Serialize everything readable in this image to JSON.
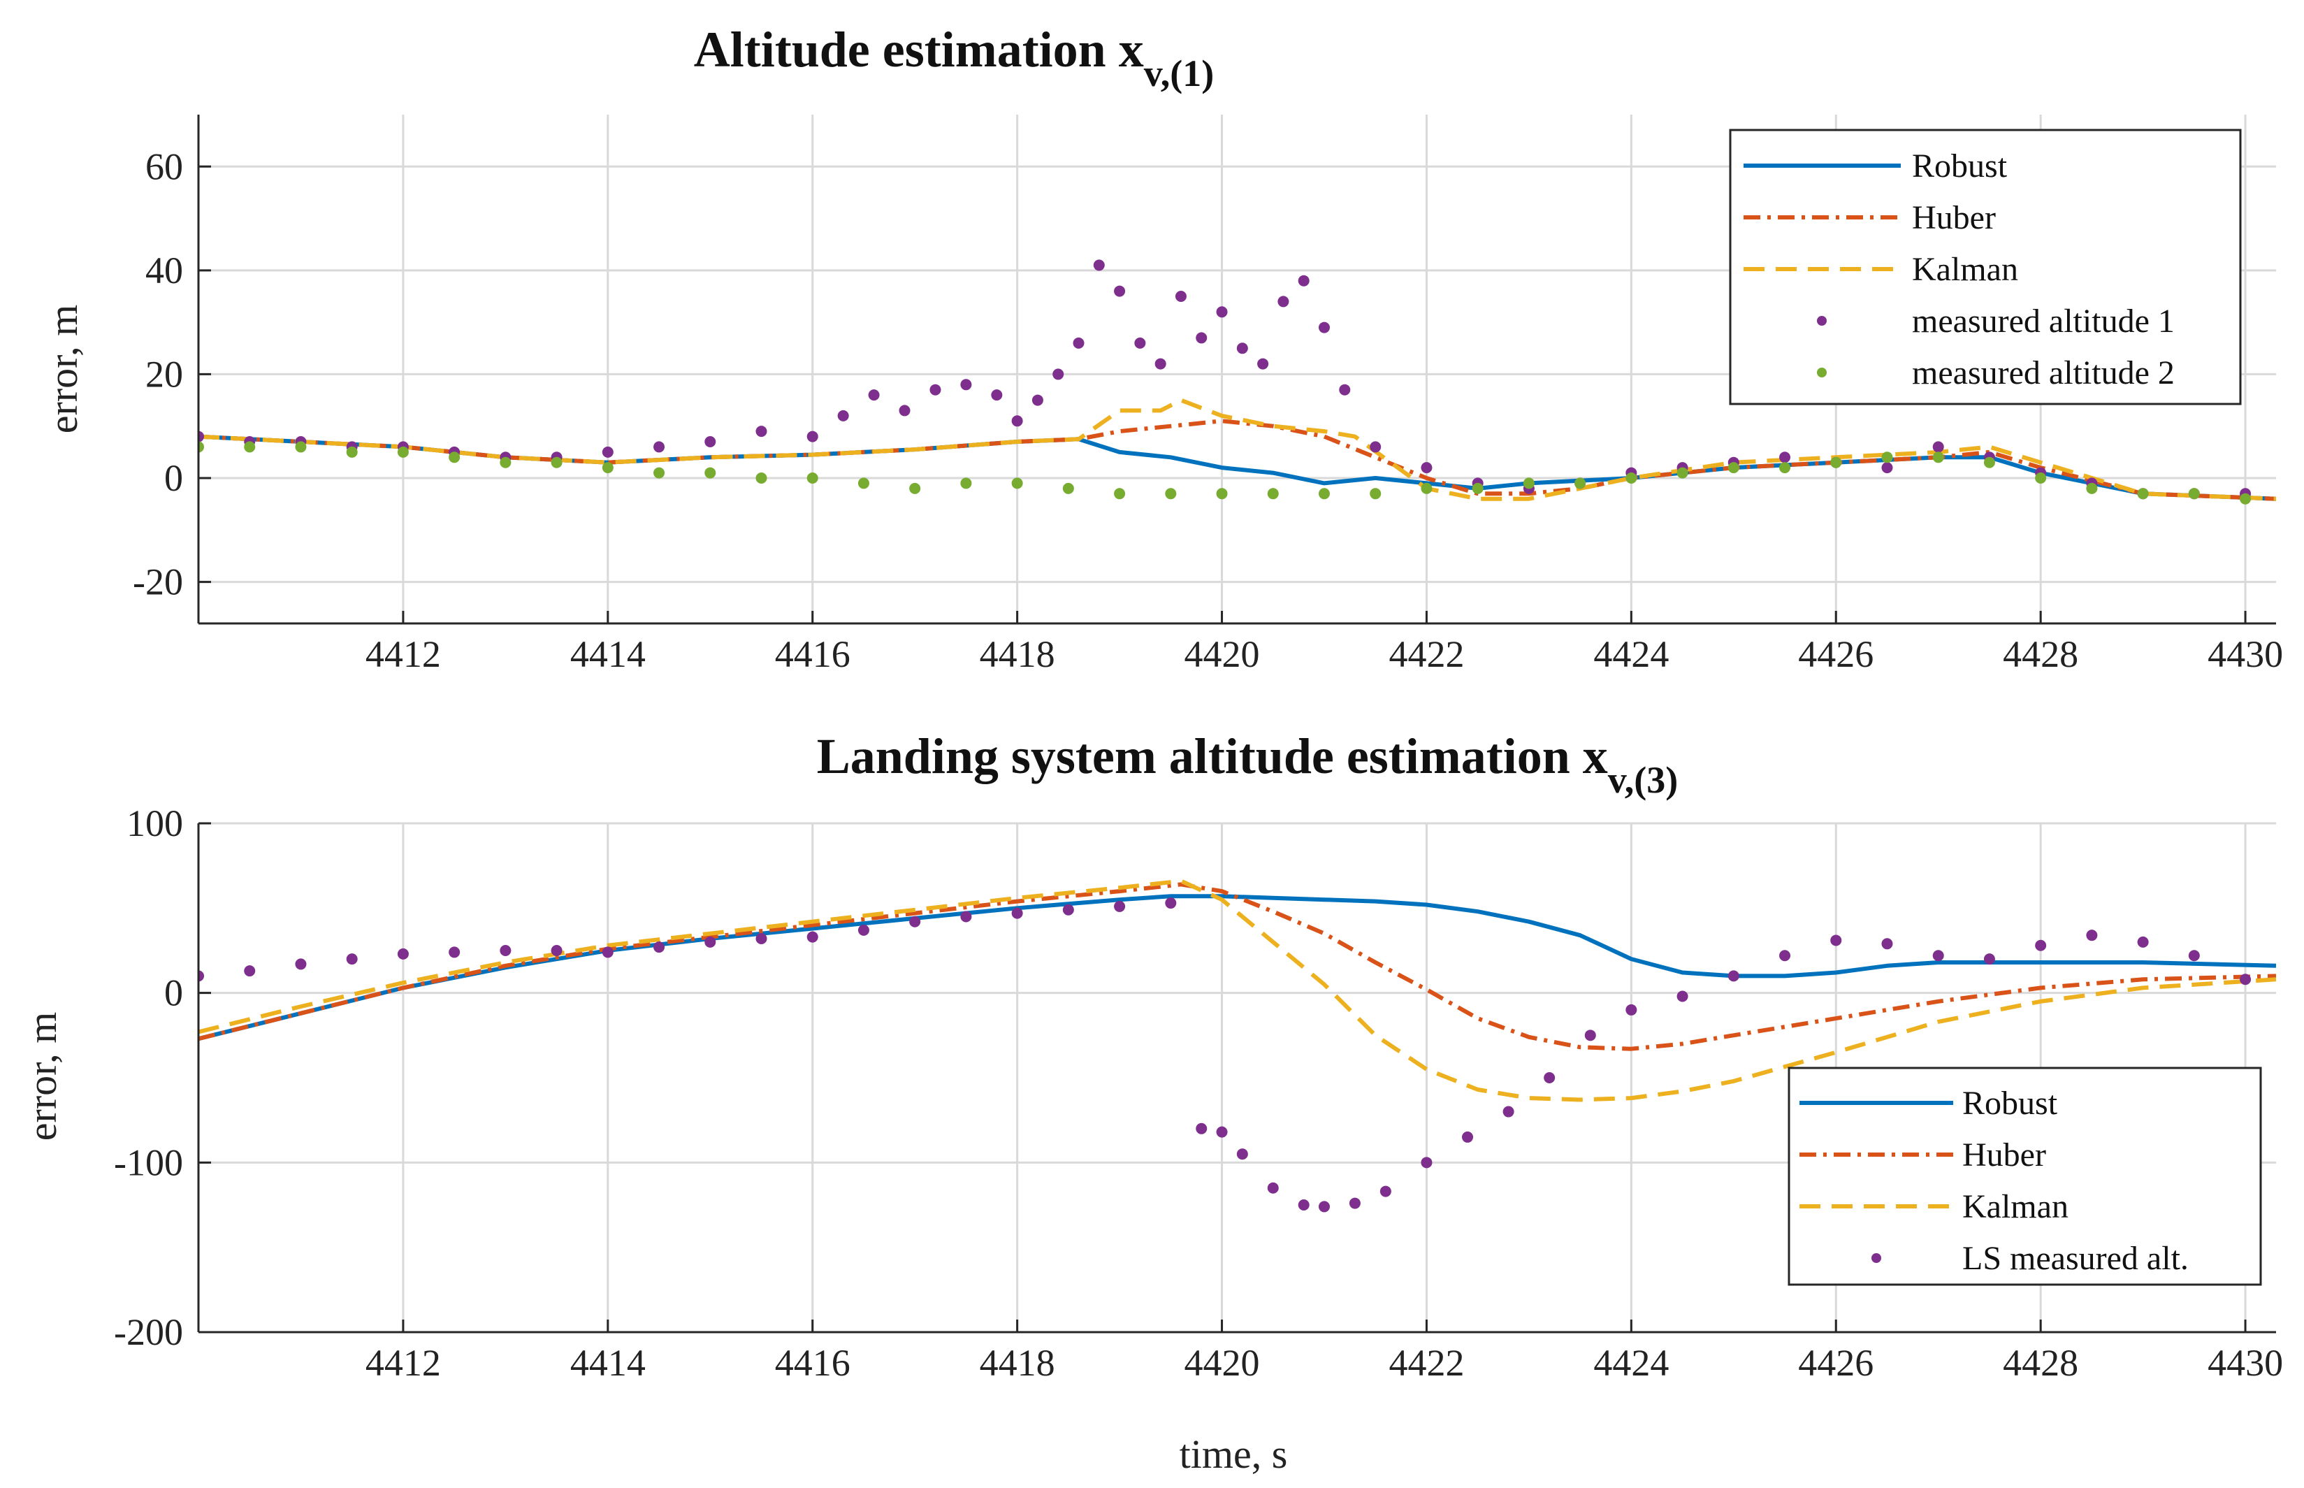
{
  "figure": {
    "panels": [
      "top",
      "bottom"
    ]
  },
  "colors": {
    "robust": "#0072BD",
    "huber": "#D95319",
    "kalman": "#EDB120",
    "meas1": "#7E2F8E",
    "meas2": "#77AC30"
  },
  "chart_data": [
    {
      "id": "top",
      "type": "line",
      "title_main": "Altitude estimation x",
      "title_sub": "v,(1)",
      "xlabel": "",
      "ylabel": "error, m",
      "xlim": [
        4410,
        4430.3
      ],
      "ylim": [
        -28,
        70
      ],
      "xticks": [
        4412,
        4414,
        4416,
        4418,
        4420,
        4422,
        4424,
        4426,
        4428,
        4430
      ],
      "xtick_labels": [
        "4412",
        "4414",
        "4416",
        "4418",
        "4420",
        "4422",
        "4424",
        "4426",
        "4428",
        "4430"
      ],
      "yticks": [
        -20,
        0,
        20,
        40,
        60
      ],
      "ytick_labels": [
        "-20",
        "0",
        "20",
        "40",
        "60"
      ],
      "grid": true,
      "legend": "top-right",
      "series": [
        {
          "name": "Robust",
          "style": "solid",
          "color": "#0072BD",
          "x": [
            4410,
            4411,
            4412,
            4413,
            4414,
            4415,
            4416,
            4417,
            4418,
            4418.6,
            4419,
            4419.5,
            4420,
            4420.5,
            4421,
            4421.5,
            4422,
            4422.5,
            4423,
            4424,
            4425,
            4426,
            4427,
            4427.5,
            4428,
            4429,
            4430.3
          ],
          "y": [
            8,
            7,
            6,
            4,
            3,
            4,
            4.5,
            5.5,
            7,
            7.5,
            5,
            4,
            2,
            1,
            -1,
            0,
            -1,
            -2,
            -1,
            0,
            2,
            3,
            4,
            4,
            1,
            -3,
            -4
          ]
        },
        {
          "name": "Huber",
          "style": "dashdot",
          "color": "#D95319",
          "x": [
            4410,
            4411,
            4412,
            4413,
            4414,
            4415,
            4416,
            4417,
            4418,
            4418.6,
            4419,
            4419.5,
            4420,
            4420.5,
            4421,
            4421.5,
            4422,
            4422.5,
            4423,
            4423.5,
            4424,
            4425,
            4426,
            4427,
            4427.5,
            4428,
            4429,
            4430.3
          ],
          "y": [
            8,
            7,
            6,
            4,
            3,
            4,
            4.5,
            5.5,
            7,
            7.5,
            9,
            10,
            11,
            10,
            8,
            4,
            0,
            -3,
            -3,
            -2,
            0,
            2,
            3,
            4,
            5,
            2,
            -3,
            -4
          ]
        },
        {
          "name": "Kalman",
          "style": "dashed",
          "color": "#EDB120",
          "x": [
            4410,
            4411,
            4412,
            4413,
            4414,
            4415,
            4416,
            4417,
            4418,
            4418.6,
            4419,
            4419.4,
            4419.6,
            4420,
            4420.5,
            4421,
            4421.3,
            4422,
            4422.5,
            4423,
            4423.5,
            4424,
            4425,
            4426,
            4427,
            4427.5,
            4428,
            4429,
            4430.3
          ],
          "y": [
            8,
            7,
            6,
            4,
            3,
            4,
            4.5,
            5.5,
            7,
            7.5,
            13,
            13,
            15,
            12,
            10,
            9,
            8,
            -2,
            -4,
            -4,
            -2,
            0,
            3,
            4,
            5,
            6,
            3,
            -3,
            -4
          ]
        },
        {
          "name": "measured altitude 1",
          "style": "dots",
          "color": "#7E2F8E",
          "x": [
            4410.0,
            4410.5,
            4411.0,
            4411.5,
            4412.0,
            4412.5,
            4413.0,
            4413.5,
            4414.0,
            4414.5,
            4415.0,
            4415.5,
            4416.0,
            4416.3,
            4416.6,
            4416.9,
            4417.2,
            4417.5,
            4417.8,
            4418.0,
            4418.2,
            4418.4,
            4418.6,
            4418.8,
            4419.0,
            4419.2,
            4419.4,
            4419.6,
            4419.8,
            4420.0,
            4420.2,
            4420.4,
            4420.6,
            4420.8,
            4421.0,
            4421.2,
            4421.5,
            4422.0,
            4422.5,
            4423.0,
            4423.5,
            4424.0,
            4424.5,
            4425.0,
            4425.5,
            4426.0,
            4426.5,
            4427.0,
            4427.5,
            4428.0,
            4428.5,
            4429.0,
            4429.5,
            4430.0
          ],
          "y": [
            8,
            7,
            7,
            6,
            6,
            5,
            4,
            4,
            5,
            6,
            7,
            9,
            8,
            12,
            16,
            13,
            17,
            18,
            16,
            11,
            15,
            20,
            26,
            41,
            36,
            26,
            22,
            35,
            27,
            32,
            25,
            22,
            34,
            38,
            29,
            17,
            6,
            2,
            -1,
            -2,
            -1,
            1,
            2,
            3,
            4,
            3,
            2,
            6,
            4,
            1,
            -1,
            -3,
            -3,
            -3
          ]
        },
        {
          "name": "measured altitude 2",
          "style": "dots",
          "color": "#77AC30",
          "x": [
            4410.0,
            4410.5,
            4411.0,
            4411.5,
            4412.0,
            4412.5,
            4413.0,
            4413.5,
            4414.0,
            4414.5,
            4415.0,
            4415.5,
            4416.0,
            4416.5,
            4417.0,
            4417.5,
            4418.0,
            4418.5,
            4419.0,
            4419.5,
            4420.0,
            4420.5,
            4421.0,
            4421.5,
            4422.0,
            4422.5,
            4423.0,
            4423.5,
            4424.0,
            4424.5,
            4425.0,
            4425.5,
            4426.0,
            4426.5,
            4427.0,
            4427.5,
            4428.0,
            4428.5,
            4429.0,
            4429.5,
            4430.0
          ],
          "y": [
            6,
            6,
            6,
            5,
            5,
            4,
            3,
            3,
            2,
            1,
            1,
            0,
            0,
            -1,
            -2,
            -1,
            -1,
            -2,
            -3,
            -3,
            -3,
            -3,
            -3,
            -3,
            -2,
            -2,
            -1,
            -1,
            0,
            1,
            2,
            2,
            3,
            4,
            4,
            3,
            0,
            -2,
            -3,
            -3,
            -4
          ]
        }
      ]
    },
    {
      "id": "bottom",
      "type": "line",
      "title_main": "Landing system altitude estimation x",
      "title_sub": "v,(3)",
      "xlabel": "time, s",
      "ylabel": "error, m",
      "xlim": [
        4410,
        4430.3
      ],
      "ylim": [
        -200,
        100
      ],
      "xticks": [
        4412,
        4414,
        4416,
        4418,
        4420,
        4422,
        4424,
        4426,
        4428,
        4430
      ],
      "xtick_labels": [
        "4412",
        "4414",
        "4416",
        "4418",
        "4420",
        "4422",
        "4424",
        "4426",
        "4428",
        "4430"
      ],
      "yticks": [
        -200,
        -100,
        0,
        100
      ],
      "ytick_labels": [
        "-200",
        "-100",
        "0",
        "100"
      ],
      "grid": true,
      "legend": "bottom-right",
      "series": [
        {
          "name": "Robust",
          "style": "solid",
          "color": "#0072BD",
          "x": [
            4410,
            4411,
            4412,
            4413,
            4414,
            4415,
            4416,
            4417,
            4418,
            4419,
            4419.5,
            4420,
            4420.5,
            4421,
            4421.5,
            4422,
            4422.5,
            4423,
            4423.5,
            4424,
            4424.5,
            4425,
            4425.5,
            4426,
            4426.5,
            4427,
            4428,
            4429,
            4430.3
          ],
          "y": [
            -27,
            -12,
            3,
            15,
            25,
            32,
            38,
            44,
            50,
            55,
            57,
            57,
            56,
            55,
            54,
            52,
            48,
            42,
            34,
            20,
            12,
            10,
            10,
            12,
            16,
            18,
            18,
            18,
            16
          ]
        },
        {
          "name": "Huber",
          "style": "dashdot",
          "color": "#D95319",
          "x": [
            4410,
            4411,
            4412,
            4413,
            4414,
            4415,
            4416,
            4417,
            4418,
            4419,
            4419.6,
            4420,
            4420.5,
            4421,
            4421.5,
            4422,
            4422.5,
            4423,
            4423.5,
            4424,
            4424.5,
            4425,
            4426,
            4427,
            4428,
            4429,
            4430.3
          ],
          "y": [
            -27,
            -12,
            3,
            16,
            26,
            33,
            40,
            47,
            54,
            60,
            64,
            60,
            48,
            35,
            18,
            2,
            -15,
            -26,
            -32,
            -33,
            -30,
            -25,
            -15,
            -5,
            3,
            8,
            10
          ]
        },
        {
          "name": "Kalman",
          "style": "dashed",
          "color": "#EDB120",
          "x": [
            4410,
            4411,
            4412,
            4413,
            4414,
            4415,
            4416,
            4417,
            4418,
            4419,
            4419.6,
            4420,
            4420.5,
            4421,
            4421.5,
            4422,
            4422.5,
            4423,
            4423.5,
            4424,
            4424.5,
            4425,
            4426,
            4427,
            4428,
            4429,
            4430.3
          ],
          "y": [
            -23,
            -8,
            6,
            18,
            28,
            35,
            42,
            49,
            56,
            62,
            66,
            55,
            30,
            5,
            -25,
            -45,
            -57,
            -62,
            -63,
            -62,
            -58,
            -52,
            -35,
            -17,
            -5,
            3,
            8
          ]
        },
        {
          "name": "LS measured alt.",
          "style": "dots",
          "color": "#7E2F8E",
          "x": [
            4410.0,
            4410.5,
            4411.0,
            4411.5,
            4412.0,
            4412.5,
            4413.0,
            4413.5,
            4414.0,
            4414.5,
            4415.0,
            4415.5,
            4416.0,
            4416.5,
            4417.0,
            4417.5,
            4418.0,
            4418.5,
            4419.0,
            4419.5,
            4419.8,
            4420.0,
            4420.2,
            4420.5,
            4420.8,
            4421.0,
            4421.3,
            4421.6,
            4422.0,
            4422.4,
            4422.8,
            4423.2,
            4423.6,
            4424.0,
            4424.5,
            4425.0,
            4425.5,
            4426.0,
            4426.5,
            4427.0,
            4427.5,
            4428.0,
            4428.5,
            4429.0,
            4429.5,
            4430.0
          ],
          "y": [
            10,
            13,
            17,
            20,
            23,
            24,
            25,
            25,
            24,
            27,
            30,
            32,
            33,
            37,
            42,
            45,
            47,
            49,
            51,
            53,
            -80,
            -82,
            -95,
            -115,
            -125,
            -126,
            -124,
            -117,
            -100,
            -85,
            -70,
            -50,
            -25,
            -10,
            -2,
            10,
            22,
            31,
            29,
            22,
            20,
            28,
            34,
            30,
            22,
            8
          ]
        }
      ]
    }
  ]
}
